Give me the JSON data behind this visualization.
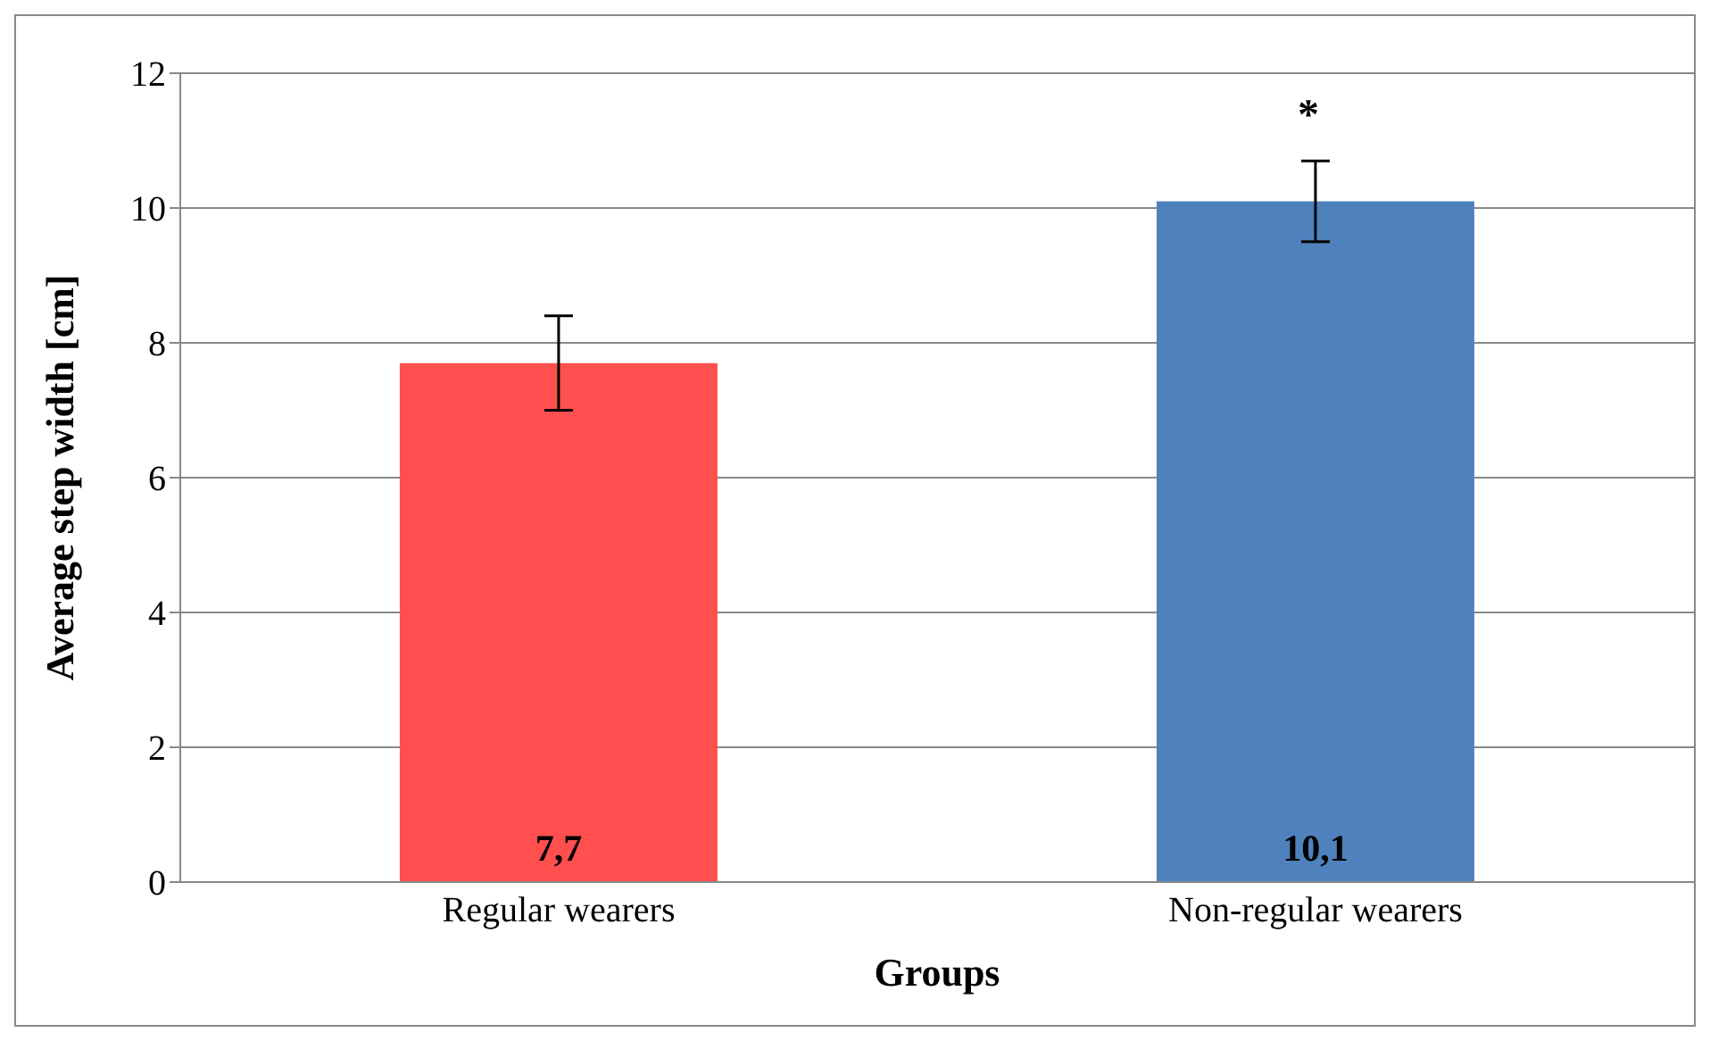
{
  "chart_data": {
    "type": "bar",
    "xlabel": "Groups",
    "ylabel": "Average step width [cm]",
    "categories": [
      "Regular wearers",
      "Non-regular wearers"
    ],
    "values": [
      7.7,
      10.1
    ],
    "colors": [
      "#ff4f4f",
      "#4f81bd"
    ],
    "errors": [
      0.7,
      0.6
    ],
    "value_labels": [
      "7,7",
      "10,1"
    ],
    "annotations": [
      "*"
    ],
    "ylim": [
      0,
      12
    ],
    "yticks": [
      0,
      2,
      4,
      6,
      8,
      10,
      12
    ],
    "grid": "y"
  }
}
